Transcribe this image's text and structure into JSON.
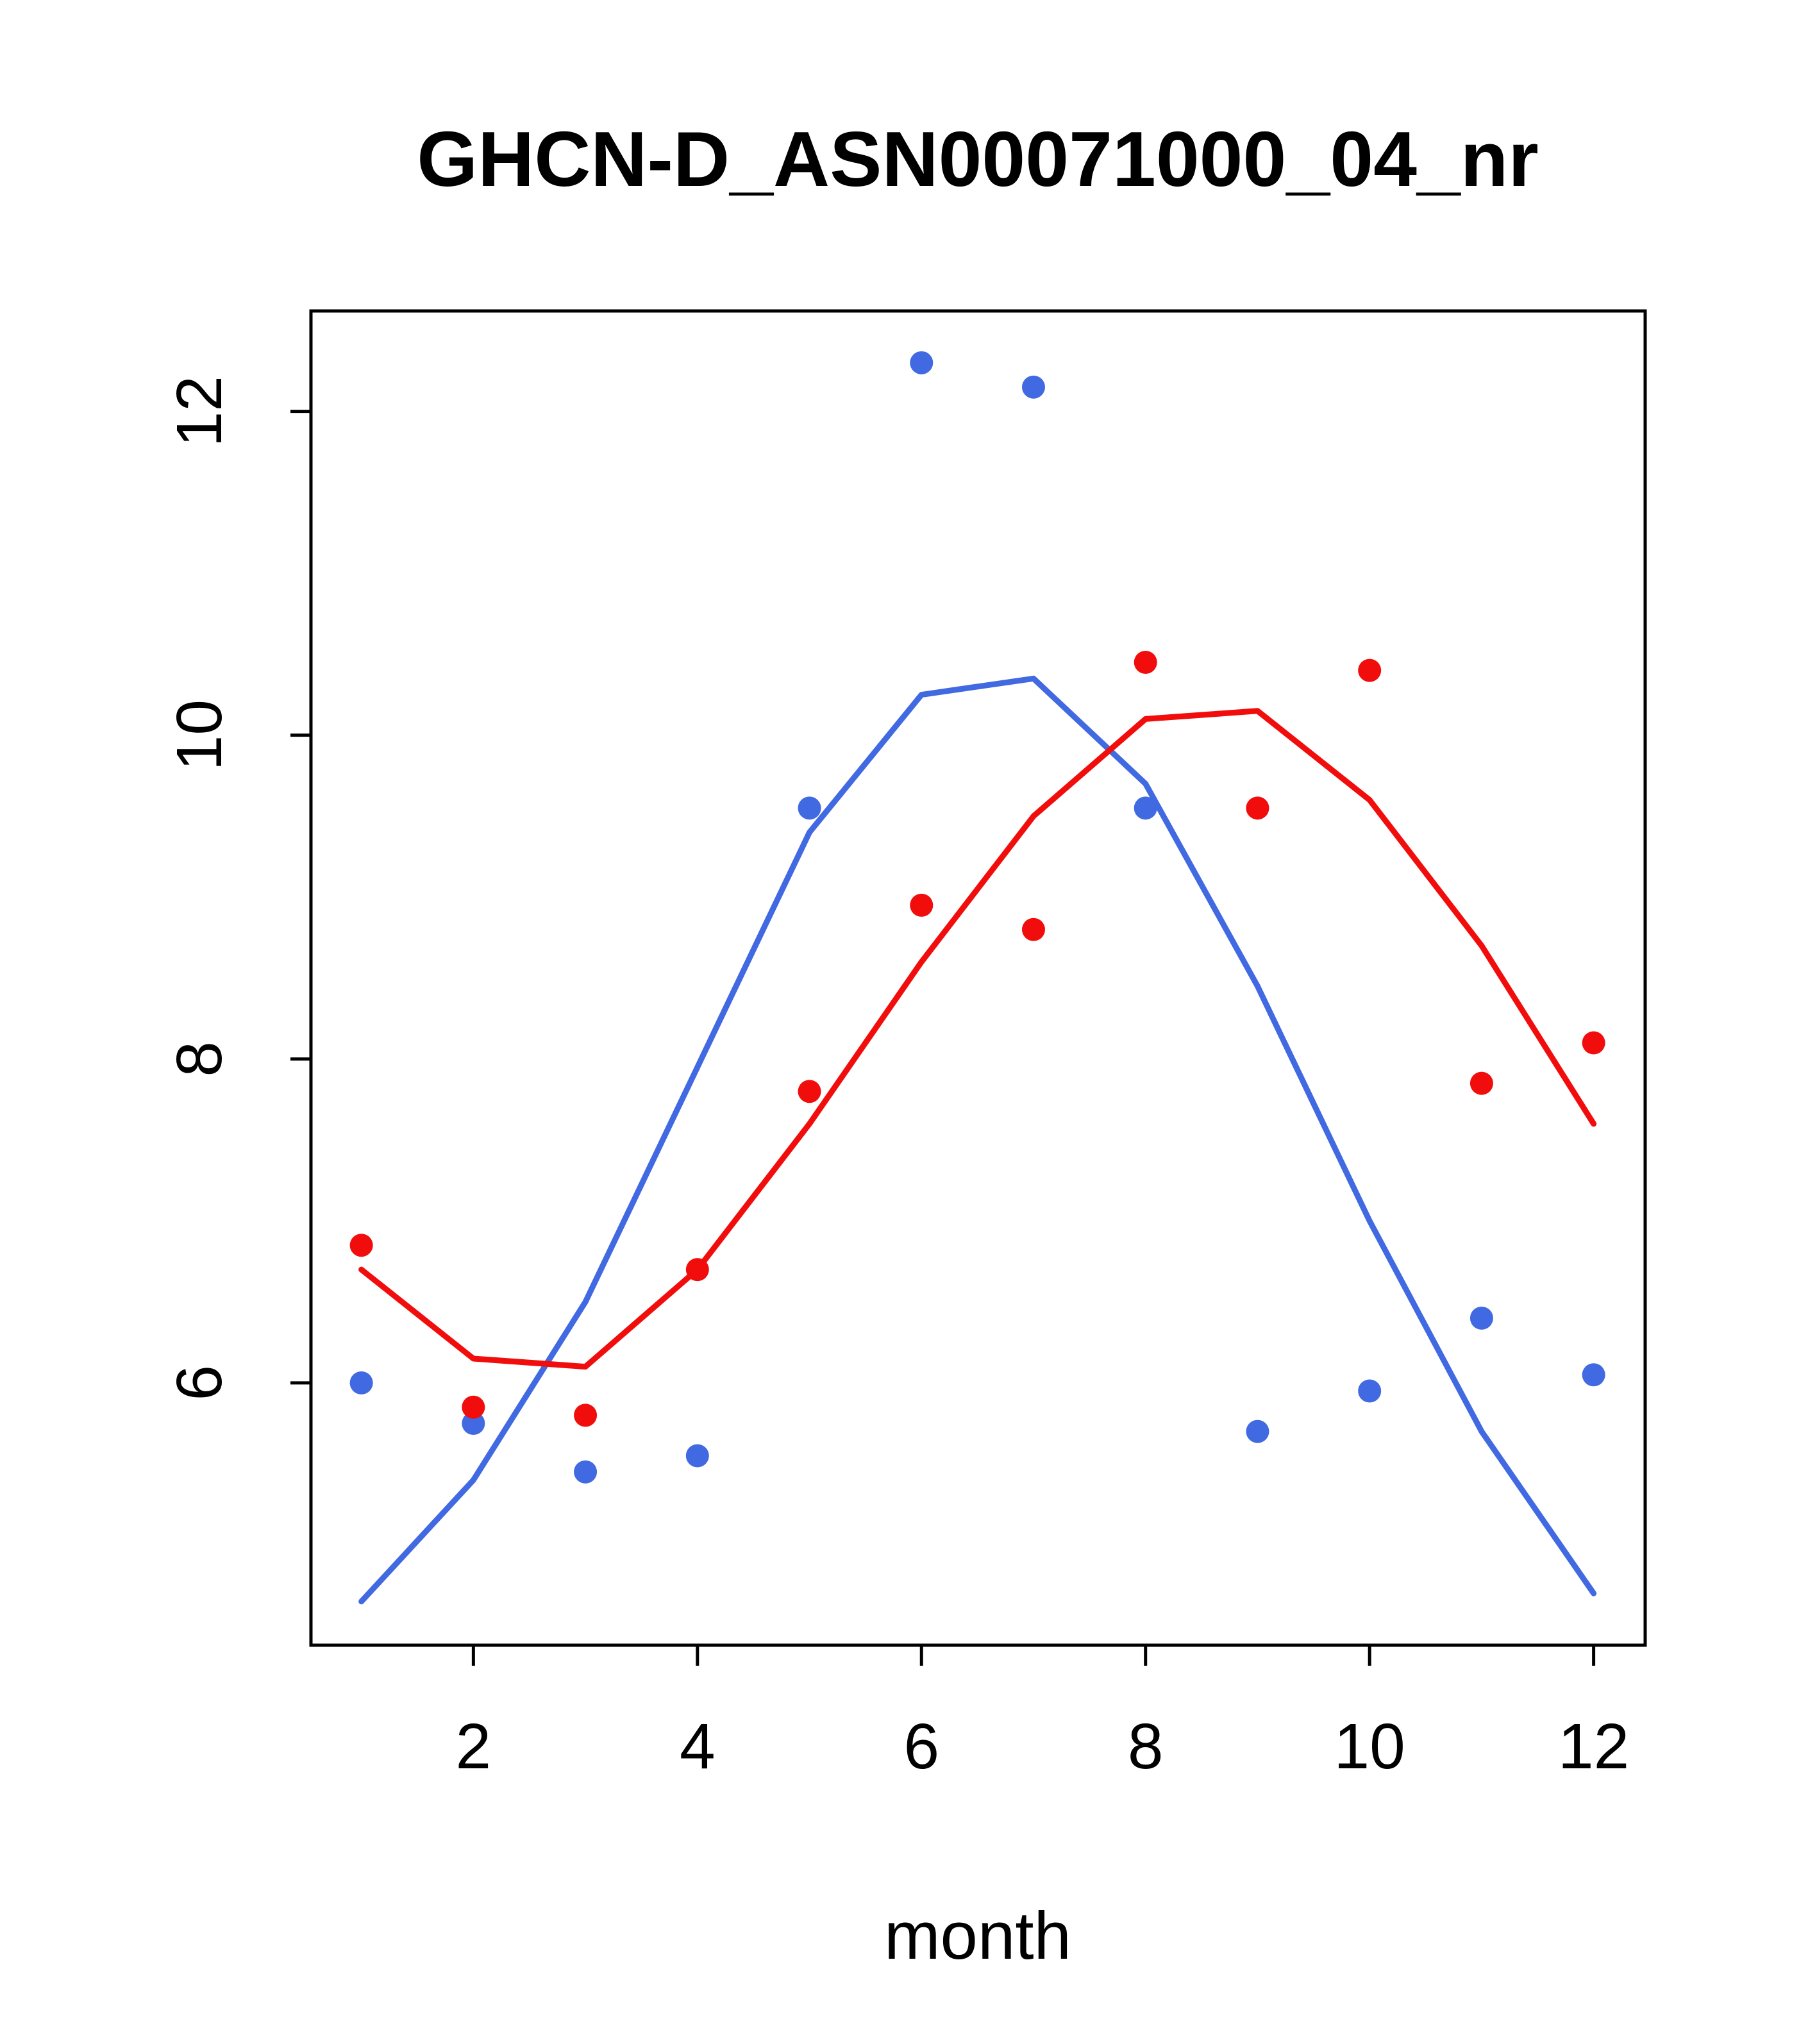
{
  "title": "GHCN-D_ASN00071000_04_nr",
  "colors": {
    "blue": "#4169e1",
    "red": "#f20d0d",
    "foreground": "#000000",
    "background": "#ffffff"
  },
  "chart_data": {
    "type": "scatter",
    "title": "GHCN-D_ASN00071000_04_nr",
    "xlabel": "month",
    "ylabel": "",
    "grid": false,
    "legend": "none",
    "x": [
      1,
      2,
      3,
      4,
      5,
      6,
      7,
      8,
      9,
      10,
      11,
      12
    ],
    "xlim": [
      0.55,
      12.46
    ],
    "ylim": [
      4.38,
      12.62
    ],
    "x_ticks": [
      2,
      4,
      6,
      8,
      10,
      12
    ],
    "y_ticks": [
      6,
      8,
      10,
      12
    ],
    "series": [
      {
        "name": "series-1-points",
        "type": "scatter",
        "color": "#4169e1",
        "values": [
          6.0,
          5.75,
          5.45,
          5.55,
          9.55,
          12.3,
          12.15,
          9.55,
          5.7,
          5.95,
          6.4,
          6.05
        ]
      },
      {
        "name": "series-1-trend",
        "type": "line",
        "color": "#4169e1",
        "values": [
          4.65,
          5.4,
          6.5,
          7.95,
          9.4,
          10.25,
          10.35,
          9.7,
          8.45,
          7.0,
          5.7,
          4.7
        ]
      },
      {
        "name": "series-2-points",
        "type": "scatter",
        "color": "#f20d0d",
        "values": [
          6.85,
          5.85,
          5.8,
          6.7,
          7.8,
          8.95,
          8.8,
          10.45,
          9.55,
          10.4,
          7.85,
          8.1
        ]
      },
      {
        "name": "series-2-trend",
        "type": "line",
        "color": "#f20d0d",
        "values": [
          6.7,
          6.15,
          6.1,
          6.7,
          7.6,
          8.6,
          9.5,
          10.1,
          10.15,
          9.6,
          8.7,
          7.6
        ]
      }
    ]
  }
}
